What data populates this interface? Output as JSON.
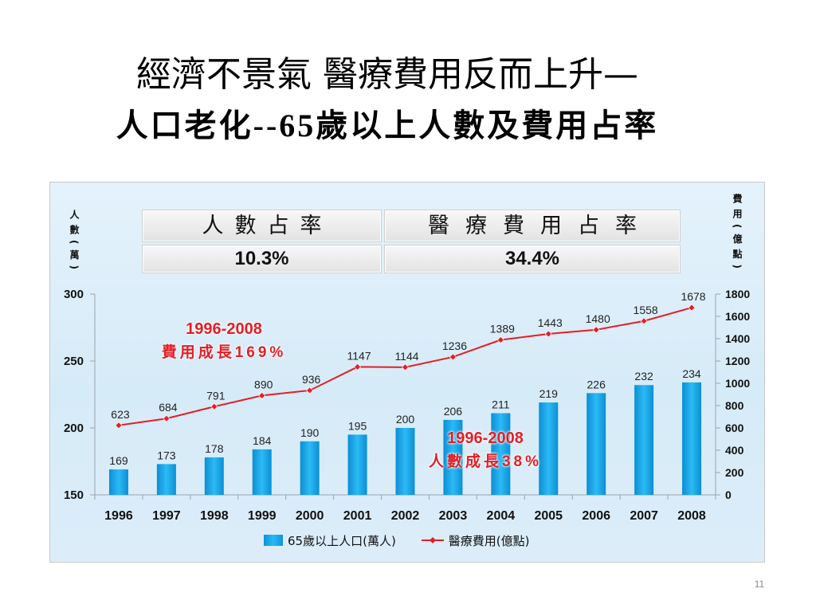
{
  "slide": {
    "title_line1": "經濟不景氣 醫療費用反而上升—",
    "title_line2": "人口老化--65歲以上人數及費用占率",
    "page_number": "11"
  },
  "summary_table": {
    "headers": [
      "人數占率",
      "醫療費用占率"
    ],
    "values": [
      "10.3%",
      "34.4%"
    ]
  },
  "chart_data": {
    "type": "bar",
    "categories": [
      "1996",
      "1997",
      "1998",
      "1999",
      "2000",
      "2001",
      "2002",
      "2003",
      "2004",
      "2005",
      "2006",
      "2007",
      "2008"
    ],
    "series": [
      {
        "name": "65歲以上人口(萬人)",
        "type": "bar",
        "axis": "left",
        "color": "#16a6ea",
        "values": [
          169,
          173,
          178,
          184,
          190,
          195,
          200,
          206,
          211,
          219,
          226,
          232,
          234
        ]
      },
      {
        "name": "醫療費用(億點)",
        "type": "line",
        "axis": "right",
        "color": "#e41e26",
        "values": [
          623,
          684,
          791,
          890,
          936,
          1147,
          1144,
          1236,
          1389,
          1443,
          1480,
          1558,
          1678
        ]
      }
    ],
    "y_left": {
      "label": "人數(萬)",
      "ylim": [
        150,
        300
      ],
      "ticks": [
        150,
        200,
        250,
        300
      ]
    },
    "y_right": {
      "label": "費用(億點)",
      "ylim": [
        0,
        1800
      ],
      "ticks": [
        0,
        200,
        400,
        600,
        800,
        1000,
        1200,
        1400,
        1600,
        1800
      ]
    },
    "annotations": [
      {
        "lines": [
          "1996-2008",
          "費用成長169%"
        ],
        "color": "#e41e26"
      },
      {
        "lines": [
          "1996-2008",
          "人數成長38%"
        ],
        "color": "#e41e26"
      }
    ],
    "legend": "bottom",
    "grid": false
  }
}
